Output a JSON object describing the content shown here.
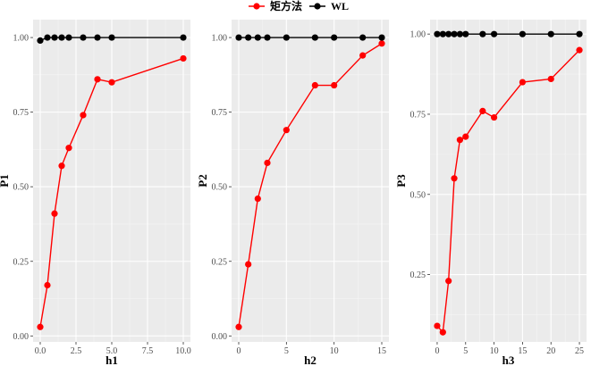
{
  "chart_data": [
    {
      "type": "line",
      "xlabel": "h1",
      "ylabel": "P1",
      "xlim": [
        -0.5,
        10.5
      ],
      "ylim": [
        -0.02,
        1.06
      ],
      "xticks": [
        0,
        2.5,
        5,
        7.5,
        10
      ],
      "xtick_labels": [
        "0.0",
        "2.5",
        "5.0",
        "7.5",
        "10.0"
      ],
      "yticks": [
        0,
        0.25,
        0.5,
        0.75,
        1.0
      ],
      "ytick_labels": [
        "0.00",
        "0.25",
        "0.50",
        "0.75",
        "1.00"
      ],
      "series": [
        {
          "name": "矩方法",
          "x": [
            0,
            0.5,
            1,
            1.5,
            2,
            3,
            4,
            5,
            10
          ],
          "values": [
            0.03,
            0.17,
            0.41,
            0.57,
            0.63,
            0.74,
            0.86,
            0.85,
            0.93
          ]
        },
        {
          "name": "WL",
          "x": [
            0,
            0.5,
            1,
            1.5,
            2,
            3,
            4,
            5,
            10
          ],
          "values": [
            0.99,
            1.0,
            1.0,
            1.0,
            1.0,
            1.0,
            1.0,
            1.0,
            1.0
          ]
        }
      ]
    },
    {
      "type": "line",
      "xlabel": "h2",
      "ylabel": "P2",
      "xlim": [
        -0.75,
        15.75
      ],
      "ylim": [
        -0.02,
        1.06
      ],
      "xticks": [
        0,
        5,
        10,
        15
      ],
      "xtick_labels": [
        "0",
        "5",
        "10",
        "15"
      ],
      "yticks": [
        0,
        0.25,
        0.5,
        0.75,
        1.0
      ],
      "ytick_labels": [
        "0.00",
        "0.25",
        "0.50",
        "0.75",
        "1.00"
      ],
      "series": [
        {
          "name": "矩方法",
          "x": [
            0,
            1,
            2,
            3,
            5,
            8,
            10,
            13,
            15
          ],
          "values": [
            0.03,
            0.24,
            0.46,
            0.58,
            0.69,
            0.84,
            0.84,
            0.94,
            0.98
          ]
        },
        {
          "name": "WL",
          "x": [
            0,
            1,
            2,
            3,
            5,
            8,
            10,
            13,
            15
          ],
          "values": [
            1.0,
            1.0,
            1.0,
            1.0,
            1.0,
            1.0,
            1.0,
            1.0,
            1.0
          ]
        }
      ]
    },
    {
      "type": "line",
      "xlabel": "h3",
      "ylabel": "P3",
      "xlim": [
        -1.25,
        26.25
      ],
      "ylim": [
        0.04,
        1.045
      ],
      "xticks": [
        0,
        5,
        10,
        15,
        20,
        25
      ],
      "xtick_labels": [
        "0",
        "5",
        "10",
        "15",
        "20",
        "25"
      ],
      "yticks": [
        0.25,
        0.5,
        0.75,
        1.0
      ],
      "ytick_labels": [
        "0.25",
        "0.50",
        "0.75",
        "1.00"
      ],
      "series": [
        {
          "name": "矩方法",
          "x": [
            0,
            1,
            2,
            3,
            4,
            5,
            8,
            10,
            15,
            20,
            25
          ],
          "values": [
            0.09,
            0.07,
            0.23,
            0.55,
            0.67,
            0.68,
            0.76,
            0.74,
            0.85,
            0.86,
            0.95
          ]
        },
        {
          "name": "WL",
          "x": [
            0,
            1,
            2,
            3,
            4,
            5,
            8,
            10,
            15,
            20,
            25
          ],
          "values": [
            1.0,
            1.0,
            1.0,
            1.0,
            1.0,
            1.0,
            1.0,
            1.0,
            1.0,
            1.0,
            1.0
          ]
        }
      ]
    }
  ],
  "legend": {
    "position": "top-center",
    "entries": [
      {
        "label": "矩方法",
        "color": "#ff0000"
      },
      {
        "label": "WL",
        "color": "#000000"
      }
    ]
  },
  "colors": {
    "panel_background": "#ebebeb",
    "grid_major": "#ffffff",
    "grid_minor": "#f5f5f5",
    "series_moment": "#ff0000",
    "series_wl": "#000000"
  }
}
